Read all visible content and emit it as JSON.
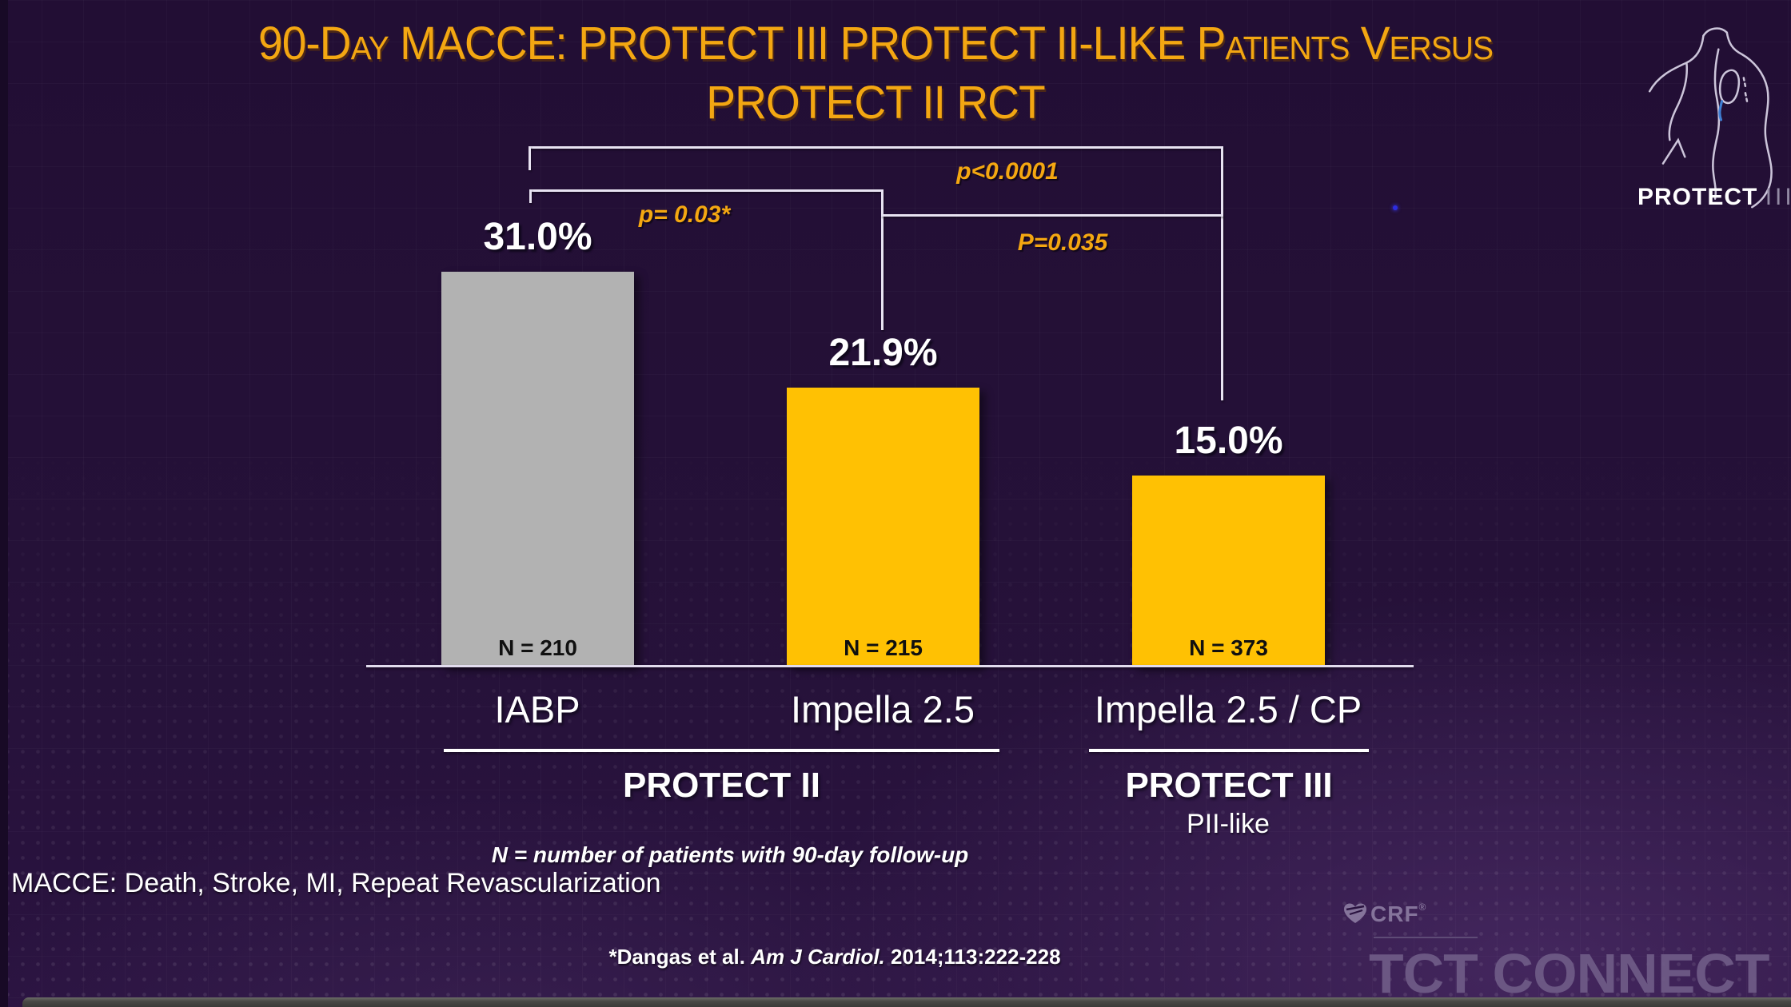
{
  "slide": {
    "title_line1": "90-Day MACCE: PROTECT III PROTECT II-LIKE Patients Versus",
    "title_line2": "PROTECT II RCT",
    "macce_footnote": "MACCE: Death, Stroke, MI, Repeat Revascularization",
    "citation_prefix": "*Dangas et al. ",
    "citation_journal": "Am J Cardiol.",
    "citation_suffix": " 2014;113:222-228",
    "accent_gold": "#f3a712",
    "background_purple": "#251138"
  },
  "logo_protect_iii": {
    "brand_bold": "PROTECT",
    "brand_light": "III"
  },
  "footer_logo": {
    "crf": "CRF",
    "crf_mark": "®",
    "event": "TCT CONNECT"
  },
  "chart_data": {
    "type": "bar",
    "title": "90-Day MACCE: PROTECT III PROTECT II-LIKE Patients Versus PROTECT II RCT",
    "categories": [
      "IABP",
      "Impella 2.5",
      "Impella 2.5 / CP"
    ],
    "values": [
      31.0,
      21.9,
      15.0
    ],
    "value_labels": [
      "31.0%",
      "21.9%",
      "15.0%"
    ],
    "bar_colors": [
      "#b2b2b2",
      "#ffc103",
      "#ffc103"
    ],
    "n_labels": [
      "N = 210",
      "N = 215",
      "N = 373"
    ],
    "xlabel": "",
    "ylabel": "",
    "ylim": [
      0,
      35
    ],
    "grid": false,
    "legend": "none",
    "groups": [
      {
        "label": "PROTECT II",
        "categories": [
          "IABP",
          "Impella 2.5"
        ],
        "note": "N = number of patients with 90-day follow-up"
      },
      {
        "label": "PROTECT III",
        "categories": [
          "Impella 2.5 / CP"
        ],
        "note": "PII-like"
      }
    ],
    "significance": [
      {
        "label": "p<0.0001",
        "from": "IABP",
        "to": "Impella 2.5 / CP"
      },
      {
        "label": "p= 0.03*",
        "from": "IABP",
        "to": "Impella 2.5"
      },
      {
        "label": "P=0.035",
        "from": "Impella 2.5",
        "to": "Impella 2.5 / CP"
      }
    ]
  }
}
